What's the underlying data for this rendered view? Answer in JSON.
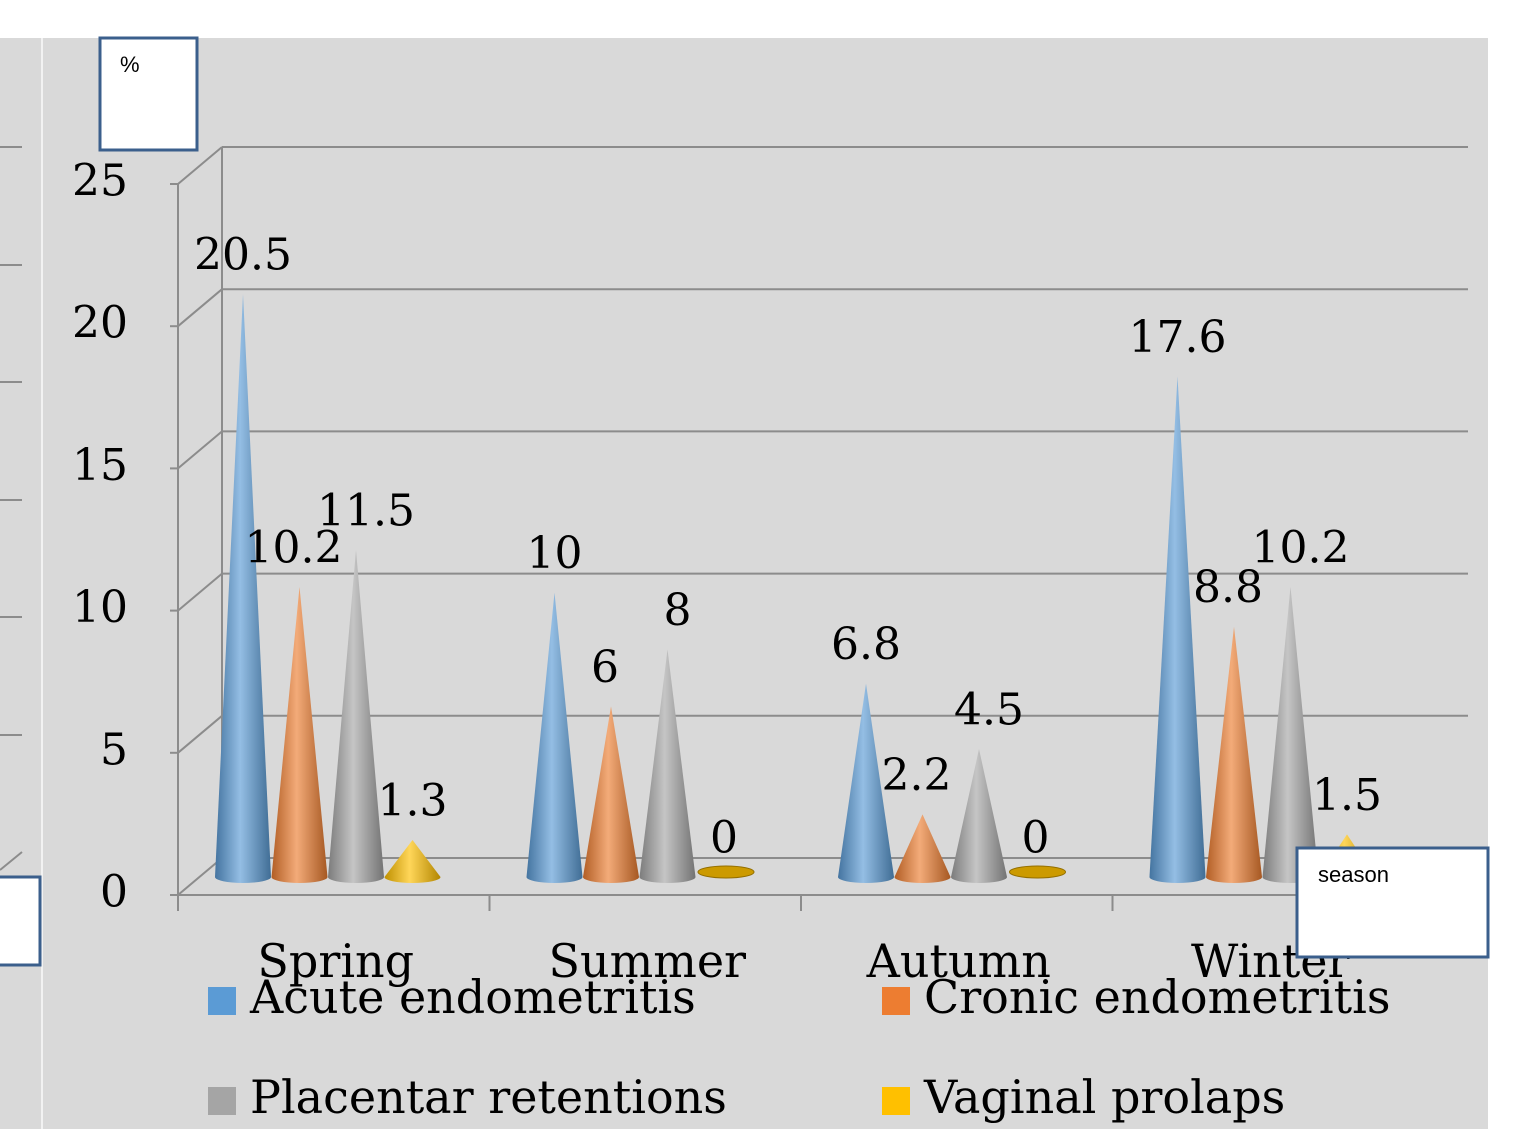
{
  "chart_data": {
    "type": "cone3d",
    "ylabel": "%",
    "xlabel": "season",
    "categories": [
      "Spring",
      "Summer",
      "Autumn",
      "Winter"
    ],
    "series": [
      {
        "name": "Acute endometritis",
        "color": "#5b9bd5",
        "values": [
          20.5,
          10,
          6.8,
          17.6
        ]
      },
      {
        "name": "Cronic endometritis",
        "color": "#ed7d31",
        "values": [
          10.2,
          6,
          2.2,
          8.8
        ]
      },
      {
        "name": "Placentar retentions",
        "color": "#a5a5a5",
        "values": [
          11.5,
          8,
          4.5,
          10.2
        ]
      },
      {
        "name": "Vaginal prolaps",
        "color": "#ffc000",
        "values": [
          1.3,
          0,
          0,
          1.5
        ]
      }
    ],
    "ylim": [
      0,
      25
    ],
    "yticks": [
      0,
      5,
      10,
      15,
      20,
      25
    ],
    "grid": true
  }
}
